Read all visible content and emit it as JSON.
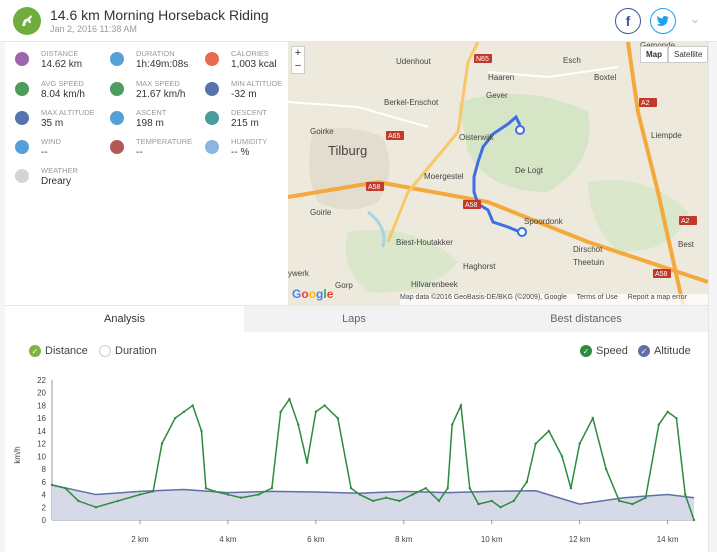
{
  "header": {
    "title": "14.6 km Morning Horseback Riding",
    "subtitle": "Jan 2, 2016 11:38 AM",
    "facebook_icon": "facebook-icon",
    "twitter_icon": "twitter-icon"
  },
  "stats": [
    {
      "label": "Distance",
      "value": "14.62 km",
      "icon": "distance-icon"
    },
    {
      "label": "Duration",
      "value": "1h:49m:08s",
      "icon": "stopwatch-icon"
    },
    {
      "label": "Calories",
      "value": "1,003 kcal",
      "icon": "flame-icon"
    },
    {
      "label": "Avg speed",
      "value": "8.04 km/h",
      "icon": "speedometer-icon"
    },
    {
      "label": "Max speed",
      "value": "21.67 km/h",
      "icon": "speedometer-icon"
    },
    {
      "label": "Min altitude",
      "value": "-32 m",
      "icon": "mountain-icon"
    },
    {
      "label": "Max altitude",
      "value": "35 m",
      "icon": "mountain-icon"
    },
    {
      "label": "Ascent",
      "value": "198 m",
      "icon": "ascent-icon"
    },
    {
      "label": "Descent",
      "value": "215 m",
      "icon": "descent-icon"
    },
    {
      "label": "Wind",
      "value": "--",
      "icon": "wind-icon"
    },
    {
      "label": "Temperature",
      "value": "--",
      "icon": "thermometer-icon"
    },
    {
      "label": "Humidity",
      "value": "-- %",
      "icon": "humidity-icon"
    },
    {
      "label": "Weather",
      "value": "Dreary",
      "icon": "cloud-icon"
    }
  ],
  "map": {
    "buttons": {
      "map": "Map",
      "satellite": "Satellite"
    },
    "zoom_in": "+",
    "zoom_out": "−",
    "attribution": "Map data ©2016 GeoBasis-DE/BKG (©2009), Google",
    "terms": "Terms of Use",
    "report": "Report a map error",
    "google": "Google",
    "places": [
      "Gemonde",
      "Udenhout",
      "Haaren",
      "Esch",
      "Boxtel",
      "Berkel-Enschot",
      "Gever",
      "Goirke",
      "Tilburg",
      "Oisterwijk",
      "De Logt",
      "Liempde",
      "Moergestel",
      "Spoordonk",
      "Goirle",
      "Biest-Houtakker",
      "Haghorst",
      "Dirschot",
      "Theetuin",
      "Best",
      "Hilvarenbeek",
      "Gorp",
      "ywerk"
    ],
    "roads": [
      "N65",
      "A2",
      "A65",
      "A58",
      "A58",
      "A2",
      "A58"
    ]
  },
  "tabs": [
    "Analysis",
    "Laps",
    "Best distances"
  ],
  "toggles": {
    "left": [
      {
        "label": "Distance",
        "checked": true,
        "color": "#7cb342"
      },
      {
        "label": "Duration",
        "checked": false
      }
    ],
    "right": [
      {
        "label": "Speed",
        "checked": true,
        "color": "#2e8b3e"
      },
      {
        "label": "Altitude",
        "checked": true,
        "color": "#5f6fa8"
      }
    ]
  },
  "chart_data": {
    "type": "line",
    "ylabel": "km/h",
    "ylim": [
      0,
      22
    ],
    "yticks": [
      "0",
      "2",
      "4",
      "6",
      "8",
      "10",
      "12",
      "14",
      "16",
      "18",
      "20",
      "22"
    ],
    "xlim": [
      0,
      14.6
    ],
    "xticks": [
      "2 km",
      "4 km",
      "6 km",
      "8 km",
      "10 km",
      "12 km",
      "14 km"
    ],
    "series": [
      {
        "name": "Speed",
        "color": "#2e8b3e",
        "x": [
          0,
          0.3,
          0.6,
          1.0,
          1.5,
          2.0,
          2.3,
          2.5,
          2.8,
          3.0,
          3.2,
          3.4,
          3.5,
          3.7,
          4.0,
          4.3,
          4.7,
          5.0,
          5.2,
          5.4,
          5.6,
          5.8,
          6.0,
          6.2,
          6.5,
          6.8,
          7.0,
          7.3,
          7.6,
          7.9,
          8.2,
          8.5,
          8.8,
          9.0,
          9.1,
          9.3,
          9.5,
          9.7,
          10.0,
          10.2,
          10.5,
          10.8,
          11.0,
          11.3,
          11.6,
          11.8,
          12.0,
          12.3,
          12.6,
          12.9,
          13.2,
          13.5,
          13.8,
          14.0,
          14.2,
          14.4,
          14.6
        ],
        "values": [
          5.5,
          5,
          3,
          2,
          3,
          4,
          4.5,
          12,
          16,
          17,
          18,
          14,
          5,
          4.5,
          4,
          3.5,
          4,
          5,
          17,
          19,
          15,
          9,
          17,
          18,
          16,
          5,
          4,
          3,
          3.5,
          3,
          4,
          5,
          3,
          5,
          15,
          18,
          5,
          2.5,
          3,
          2,
          3,
          6,
          12,
          14,
          10,
          5,
          12,
          16,
          8,
          3,
          2.5,
          3.5,
          15,
          17,
          16,
          4,
          0
        ]
      },
      {
        "name": "Altitude",
        "color": "#5f6fa8",
        "x": [
          0,
          1,
          2,
          3,
          4,
          5,
          6,
          7,
          8,
          9,
          10,
          11,
          12,
          13,
          14,
          14.6
        ],
        "values": [
          5.5,
          4,
          4.5,
          4.8,
          4.3,
          4.5,
          4.4,
          4.2,
          4.5,
          4.3,
          4.5,
          4.6,
          2.5,
          3.5,
          4,
          3.5
        ]
      }
    ]
  }
}
